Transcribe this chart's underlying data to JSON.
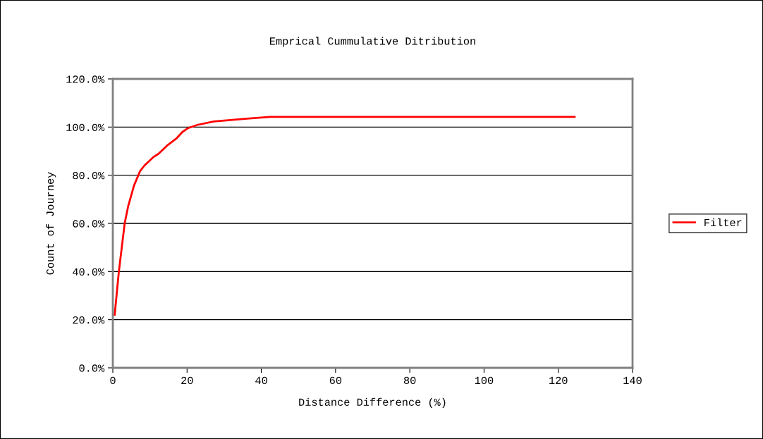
{
  "chart_data": {
    "type": "line",
    "title": "Emprical Cummulative Ditribution",
    "xlabel": "Distance Difference (%)",
    "ylabel": "Count of Journey",
    "series": [
      {
        "name": "Filter",
        "color": "#ff0000",
        "x": [
          0.5,
          1.6,
          3.2,
          4.1,
          5.7,
          7.3,
          8.5,
          10.8,
          12.3,
          14.6,
          17.1,
          18.7,
          20.3,
          22.8,
          27.2,
          36.1,
          42.4,
          60,
          80,
          100,
          124.4
        ],
        "values": [
          22.0,
          39.6,
          60.1,
          66.9,
          75.7,
          81.6,
          84.0,
          87.4,
          88.9,
          92.3,
          95.2,
          97.9,
          99.6,
          100.9,
          102.3,
          103.5,
          104.2,
          104.2,
          104.2,
          104.2,
          104.2
        ]
      }
    ],
    "xlim": [
      0,
      140
    ],
    "xticks": [
      0,
      20,
      40,
      60,
      80,
      100,
      120,
      140
    ],
    "ylim": [
      0,
      120
    ],
    "yticks": [
      {
        "value": 0,
        "label": "0.0%"
      },
      {
        "value": 20,
        "label": "20.0%"
      },
      {
        "value": 40,
        "label": "40.0%"
      },
      {
        "value": 60,
        "label": "60.0%"
      },
      {
        "value": 80,
        "label": "80.0%"
      },
      {
        "value": 100,
        "label": "100.0%"
      },
      {
        "value": 120,
        "label": "120.0%"
      }
    ],
    "grid": "y",
    "legend": "right",
    "marker": "none",
    "line_style": "solid"
  }
}
